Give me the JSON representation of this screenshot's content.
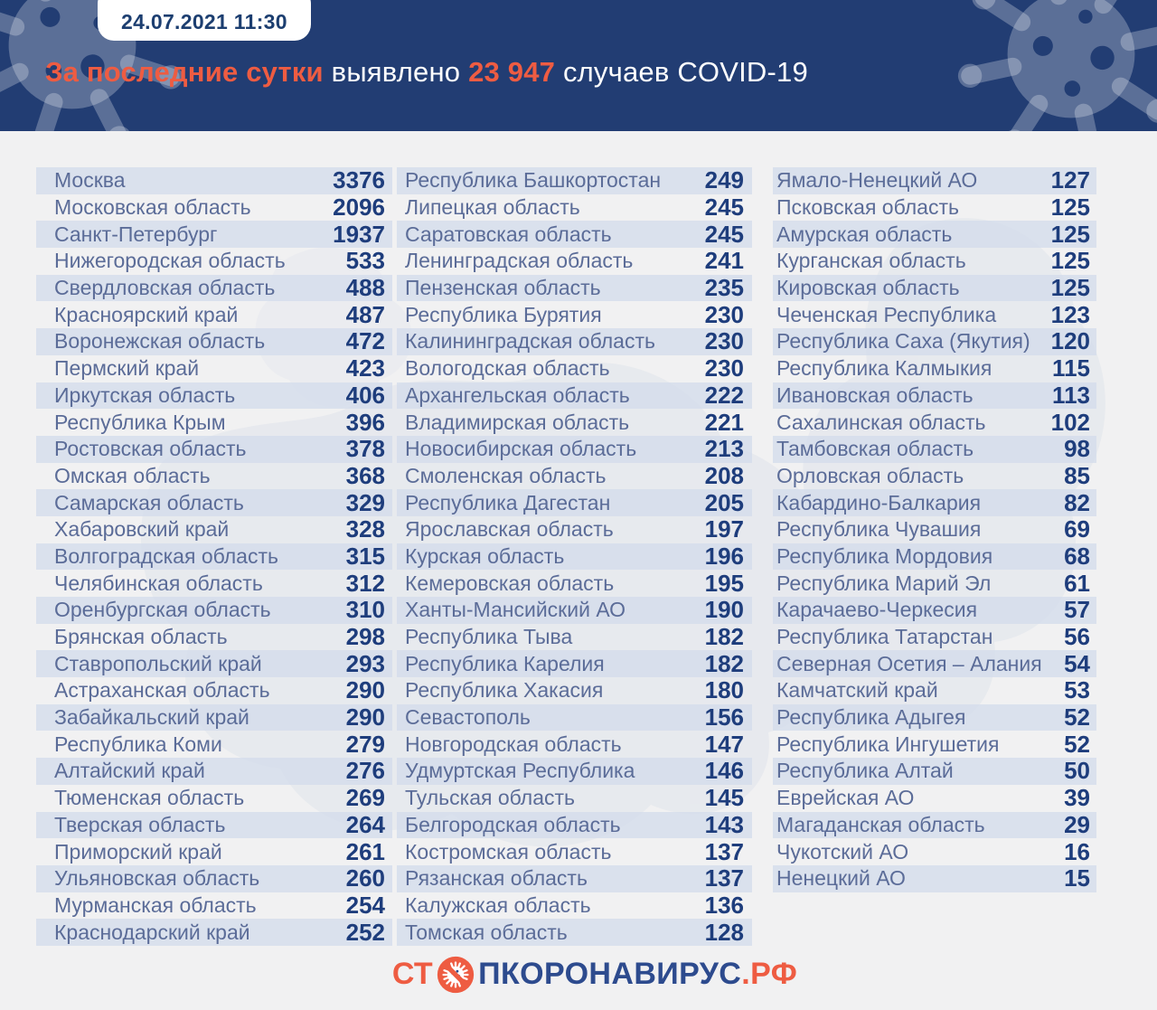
{
  "header": {
    "timestamp": "24.07.2021 11:30",
    "title_accent_1": "За последние сутки",
    "title_plain_1": "выявлено",
    "title_accent_2": "23 947",
    "title_plain_2": "случаев COVID-19"
  },
  "colors": {
    "header_bg": "#223d73",
    "accent_orange": "#ee5c42",
    "value_navy": "#1e3d7c",
    "region_text": "#5b6c98",
    "row_stripe": "#dde4ee",
    "page_bg": "#f1f1f2",
    "logo_navy": "#2d4b8e"
  },
  "footer": {
    "logo_prefix": "СТ",
    "logo_main": "ПКОРОНАВИРУС",
    "logo_suffix": ".РФ"
  },
  "chart_data": {
    "type": "table",
    "title": "За последние сутки выявлено 23 947 случаев COVID-19",
    "timestamp": "24.07.2021 11:30",
    "total_new_cases": "23 947",
    "columns": [
      {
        "rows": [
          {
            "region": "Москва",
            "value": "3376"
          },
          {
            "region": "Московская область",
            "value": "2096"
          },
          {
            "region": "Санкт-Петербург",
            "value": "1937"
          },
          {
            "region": "Нижегородская область",
            "value": "533"
          },
          {
            "region": "Свердловская область",
            "value": "488"
          },
          {
            "region": "Красноярский край",
            "value": "487"
          },
          {
            "region": "Воронежская область",
            "value": "472"
          },
          {
            "region": "Пермский край",
            "value": "423"
          },
          {
            "region": "Иркутская область",
            "value": "406"
          },
          {
            "region": "Республика Крым",
            "value": "396"
          },
          {
            "region": "Ростовская область",
            "value": "378"
          },
          {
            "region": "Омская область",
            "value": "368"
          },
          {
            "region": "Самарская область",
            "value": "329"
          },
          {
            "region": "Хабаровский край",
            "value": "328"
          },
          {
            "region": "Волгоградская область",
            "value": "315"
          },
          {
            "region": "Челябинская область",
            "value": "312"
          },
          {
            "region": "Оренбургская область",
            "value": "310"
          },
          {
            "region": "Брянская область",
            "value": "298"
          },
          {
            "region": "Ставропольский край",
            "value": "293"
          },
          {
            "region": "Астраханская область",
            "value": "290"
          },
          {
            "region": "Забайкальский край",
            "value": "290"
          },
          {
            "region": "Республика Коми",
            "value": "279"
          },
          {
            "region": "Алтайский край",
            "value": "276"
          },
          {
            "region": "Тюменская область",
            "value": "269"
          },
          {
            "region": "Тверская область",
            "value": "264"
          },
          {
            "region": "Приморский край",
            "value": "261"
          },
          {
            "region": "Ульяновская область",
            "value": "260"
          },
          {
            "region": "Мурманская область",
            "value": "254"
          },
          {
            "region": "Краснодарский край",
            "value": "252"
          }
        ]
      },
      {
        "rows": [
          {
            "region": "Республика Башкортостан",
            "value": "249"
          },
          {
            "region": "Липецкая область",
            "value": "245"
          },
          {
            "region": "Саратовская область",
            "value": "245"
          },
          {
            "region": "Ленинградская область",
            "value": "241"
          },
          {
            "region": "Пензенская область",
            "value": "235"
          },
          {
            "region": "Республика Бурятия",
            "value": "230"
          },
          {
            "region": "Калининградская область",
            "value": "230"
          },
          {
            "region": "Вологодская область",
            "value": "230"
          },
          {
            "region": "Архангельская область",
            "value": "222"
          },
          {
            "region": "Владимирская область",
            "value": "221"
          },
          {
            "region": "Новосибирская область",
            "value": "213"
          },
          {
            "region": "Смоленская область",
            "value": "208"
          },
          {
            "region": "Республика Дагестан",
            "value": "205"
          },
          {
            "region": "Ярославская область",
            "value": "197"
          },
          {
            "region": "Курская область",
            "value": "196"
          },
          {
            "region": "Кемеровская область",
            "value": "195"
          },
          {
            "region": "Ханты-Мансийский АО",
            "value": "190"
          },
          {
            "region": "Республика Тыва",
            "value": "182"
          },
          {
            "region": "Республика Карелия",
            "value": "182"
          },
          {
            "region": "Республика Хакасия",
            "value": "180"
          },
          {
            "region": "Севастополь",
            "value": "156"
          },
          {
            "region": "Новгородская область",
            "value": "147"
          },
          {
            "region": "Удмуртская Республика",
            "value": "146"
          },
          {
            "region": "Тульская область",
            "value": "145"
          },
          {
            "region": "Белгородская область",
            "value": "143"
          },
          {
            "region": "Костромская область",
            "value": "137"
          },
          {
            "region": "Рязанская область",
            "value": "137"
          },
          {
            "region": "Калужская область",
            "value": "136"
          },
          {
            "region": "Томская область",
            "value": "128"
          }
        ]
      },
      {
        "rows": [
          {
            "region": "Ямало-Ненецкий АО",
            "value": "127"
          },
          {
            "region": "Псковская область",
            "value": "125"
          },
          {
            "region": "Амурская область",
            "value": "125"
          },
          {
            "region": "Курганская область",
            "value": "125"
          },
          {
            "region": "Кировская область",
            "value": "125"
          },
          {
            "region": "Чеченская Республика",
            "value": "123"
          },
          {
            "region": "Республика Саха (Якутия)",
            "value": "120"
          },
          {
            "region": "Республика Калмыкия",
            "value": "115"
          },
          {
            "region": "Ивановская область",
            "value": "113"
          },
          {
            "region": "Сахалинская область",
            "value": "102"
          },
          {
            "region": "Тамбовская область",
            "value": "98"
          },
          {
            "region": "Орловская область",
            "value": "85"
          },
          {
            "region": "Кабардино-Балкария",
            "value": "82"
          },
          {
            "region": "Республика Чувашия",
            "value": "69"
          },
          {
            "region": "Республика Мордовия",
            "value": "68"
          },
          {
            "region": "Республика Марий Эл",
            "value": "61"
          },
          {
            "region": "Карачаево-Черкесия",
            "value": "57"
          },
          {
            "region": "Республика Татарстан",
            "value": "56"
          },
          {
            "region": "Северная Осетия – Алания",
            "value": "54"
          },
          {
            "region": "Камчатский край",
            "value": "53"
          },
          {
            "region": "Республика Адыгея",
            "value": "52"
          },
          {
            "region": "Республика Ингушетия",
            "value": "52"
          },
          {
            "region": "Республика Алтай",
            "value": "50"
          },
          {
            "region": "Еврейская АО",
            "value": "39"
          },
          {
            "region": "Магаданская область",
            "value": "29"
          },
          {
            "region": "Чукотский АО",
            "value": "16"
          },
          {
            "region": "Ненецкий АО",
            "value": "15"
          }
        ]
      }
    ]
  }
}
